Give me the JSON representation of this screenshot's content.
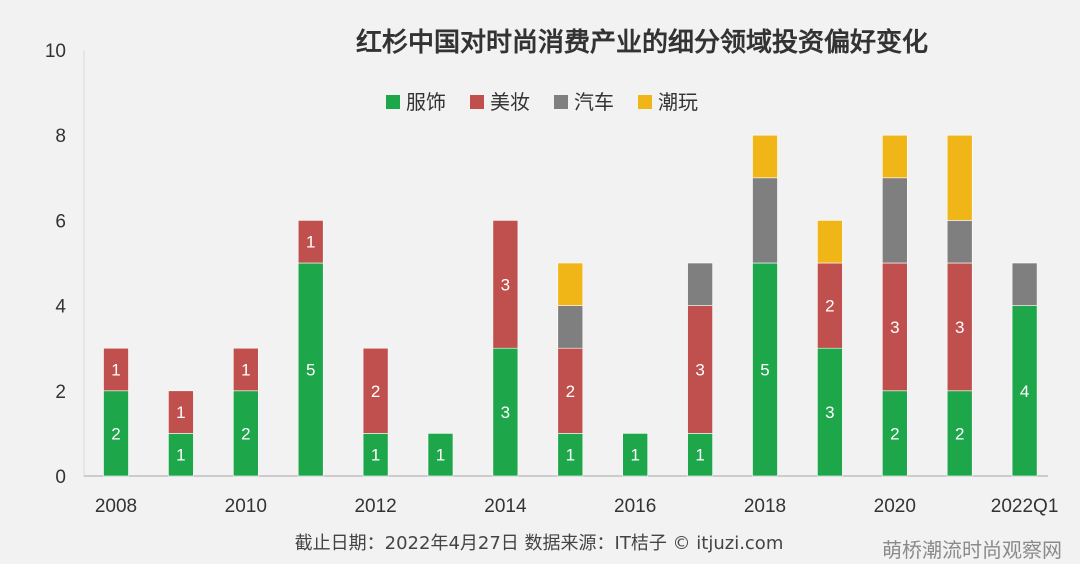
{
  "chart_data": {
    "type": "bar",
    "stacked": true,
    "title": "红杉中国对时尚消费产业的细分领域投资偏好变化",
    "xlabel": "",
    "ylabel": "",
    "ylim": [
      0,
      10
    ],
    "yticks": [
      0,
      2,
      4,
      6,
      8,
      10
    ],
    "grid": false,
    "legend_position": "top",
    "categories": [
      "2008",
      "2009",
      "2010",
      "2011",
      "2012",
      "2013",
      "2014",
      "2015",
      "2016",
      "2017",
      "2018",
      "2019",
      "2020",
      "2021",
      "2022Q1"
    ],
    "category_labels": [
      "2008",
      "",
      "2010",
      "",
      "2012",
      "",
      "2014",
      "",
      "2016",
      "",
      "2018",
      "",
      "2020",
      "",
      "2022Q1"
    ],
    "series": [
      {
        "name": "服饰",
        "color": "#1ea64a",
        "values": [
          2,
          1,
          2,
          5,
          1,
          1,
          3,
          1,
          1,
          1,
          5,
          3,
          2,
          2,
          4
        ]
      },
      {
        "name": "美妆",
        "color": "#c0504d",
        "values": [
          1,
          1,
          1,
          1,
          2,
          0,
          3,
          2,
          0,
          3,
          0,
          2,
          3,
          3,
          0
        ]
      },
      {
        "name": "汽车",
        "color": "#7f7f7f",
        "values": [
          0,
          0,
          0,
          0,
          0,
          0,
          0,
          1,
          0,
          1,
          2,
          0,
          2,
          1,
          1
        ]
      },
      {
        "name": "潮玩",
        "color": "#f0b618",
        "values": [
          0,
          0,
          0,
          0,
          0,
          0,
          0,
          1,
          0,
          0,
          1,
          1,
          1,
          2,
          0
        ]
      }
    ],
    "data_labels": {
      "服饰": [
        "2",
        "1",
        "2",
        "5",
        "1",
        "1",
        "3",
        "1",
        "1",
        "1",
        "5",
        "3",
        "2",
        "2",
        "4"
      ],
      "美妆": [
        "1",
        "1",
        "1",
        "1",
        "2",
        "",
        "3",
        "2",
        "",
        "3",
        "",
        "2",
        "3",
        "3",
        ""
      ],
      "汽车": [
        "",
        "",
        "",
        "",
        "",
        "",
        "",
        "",
        "",
        "",
        "",
        "",
        "",
        "",
        ""
      ],
      "潮玩": [
        "",
        "",
        "",
        "",
        "",
        "",
        "",
        "",
        "",
        "",
        "",
        "",
        "",
        "",
        ""
      ]
    }
  },
  "footer": {
    "source": "截止日期：2022年4月27日   数据来源：IT桔子 © itjuzi.com",
    "watermark": "萌桥潮流时尚观察网"
  }
}
